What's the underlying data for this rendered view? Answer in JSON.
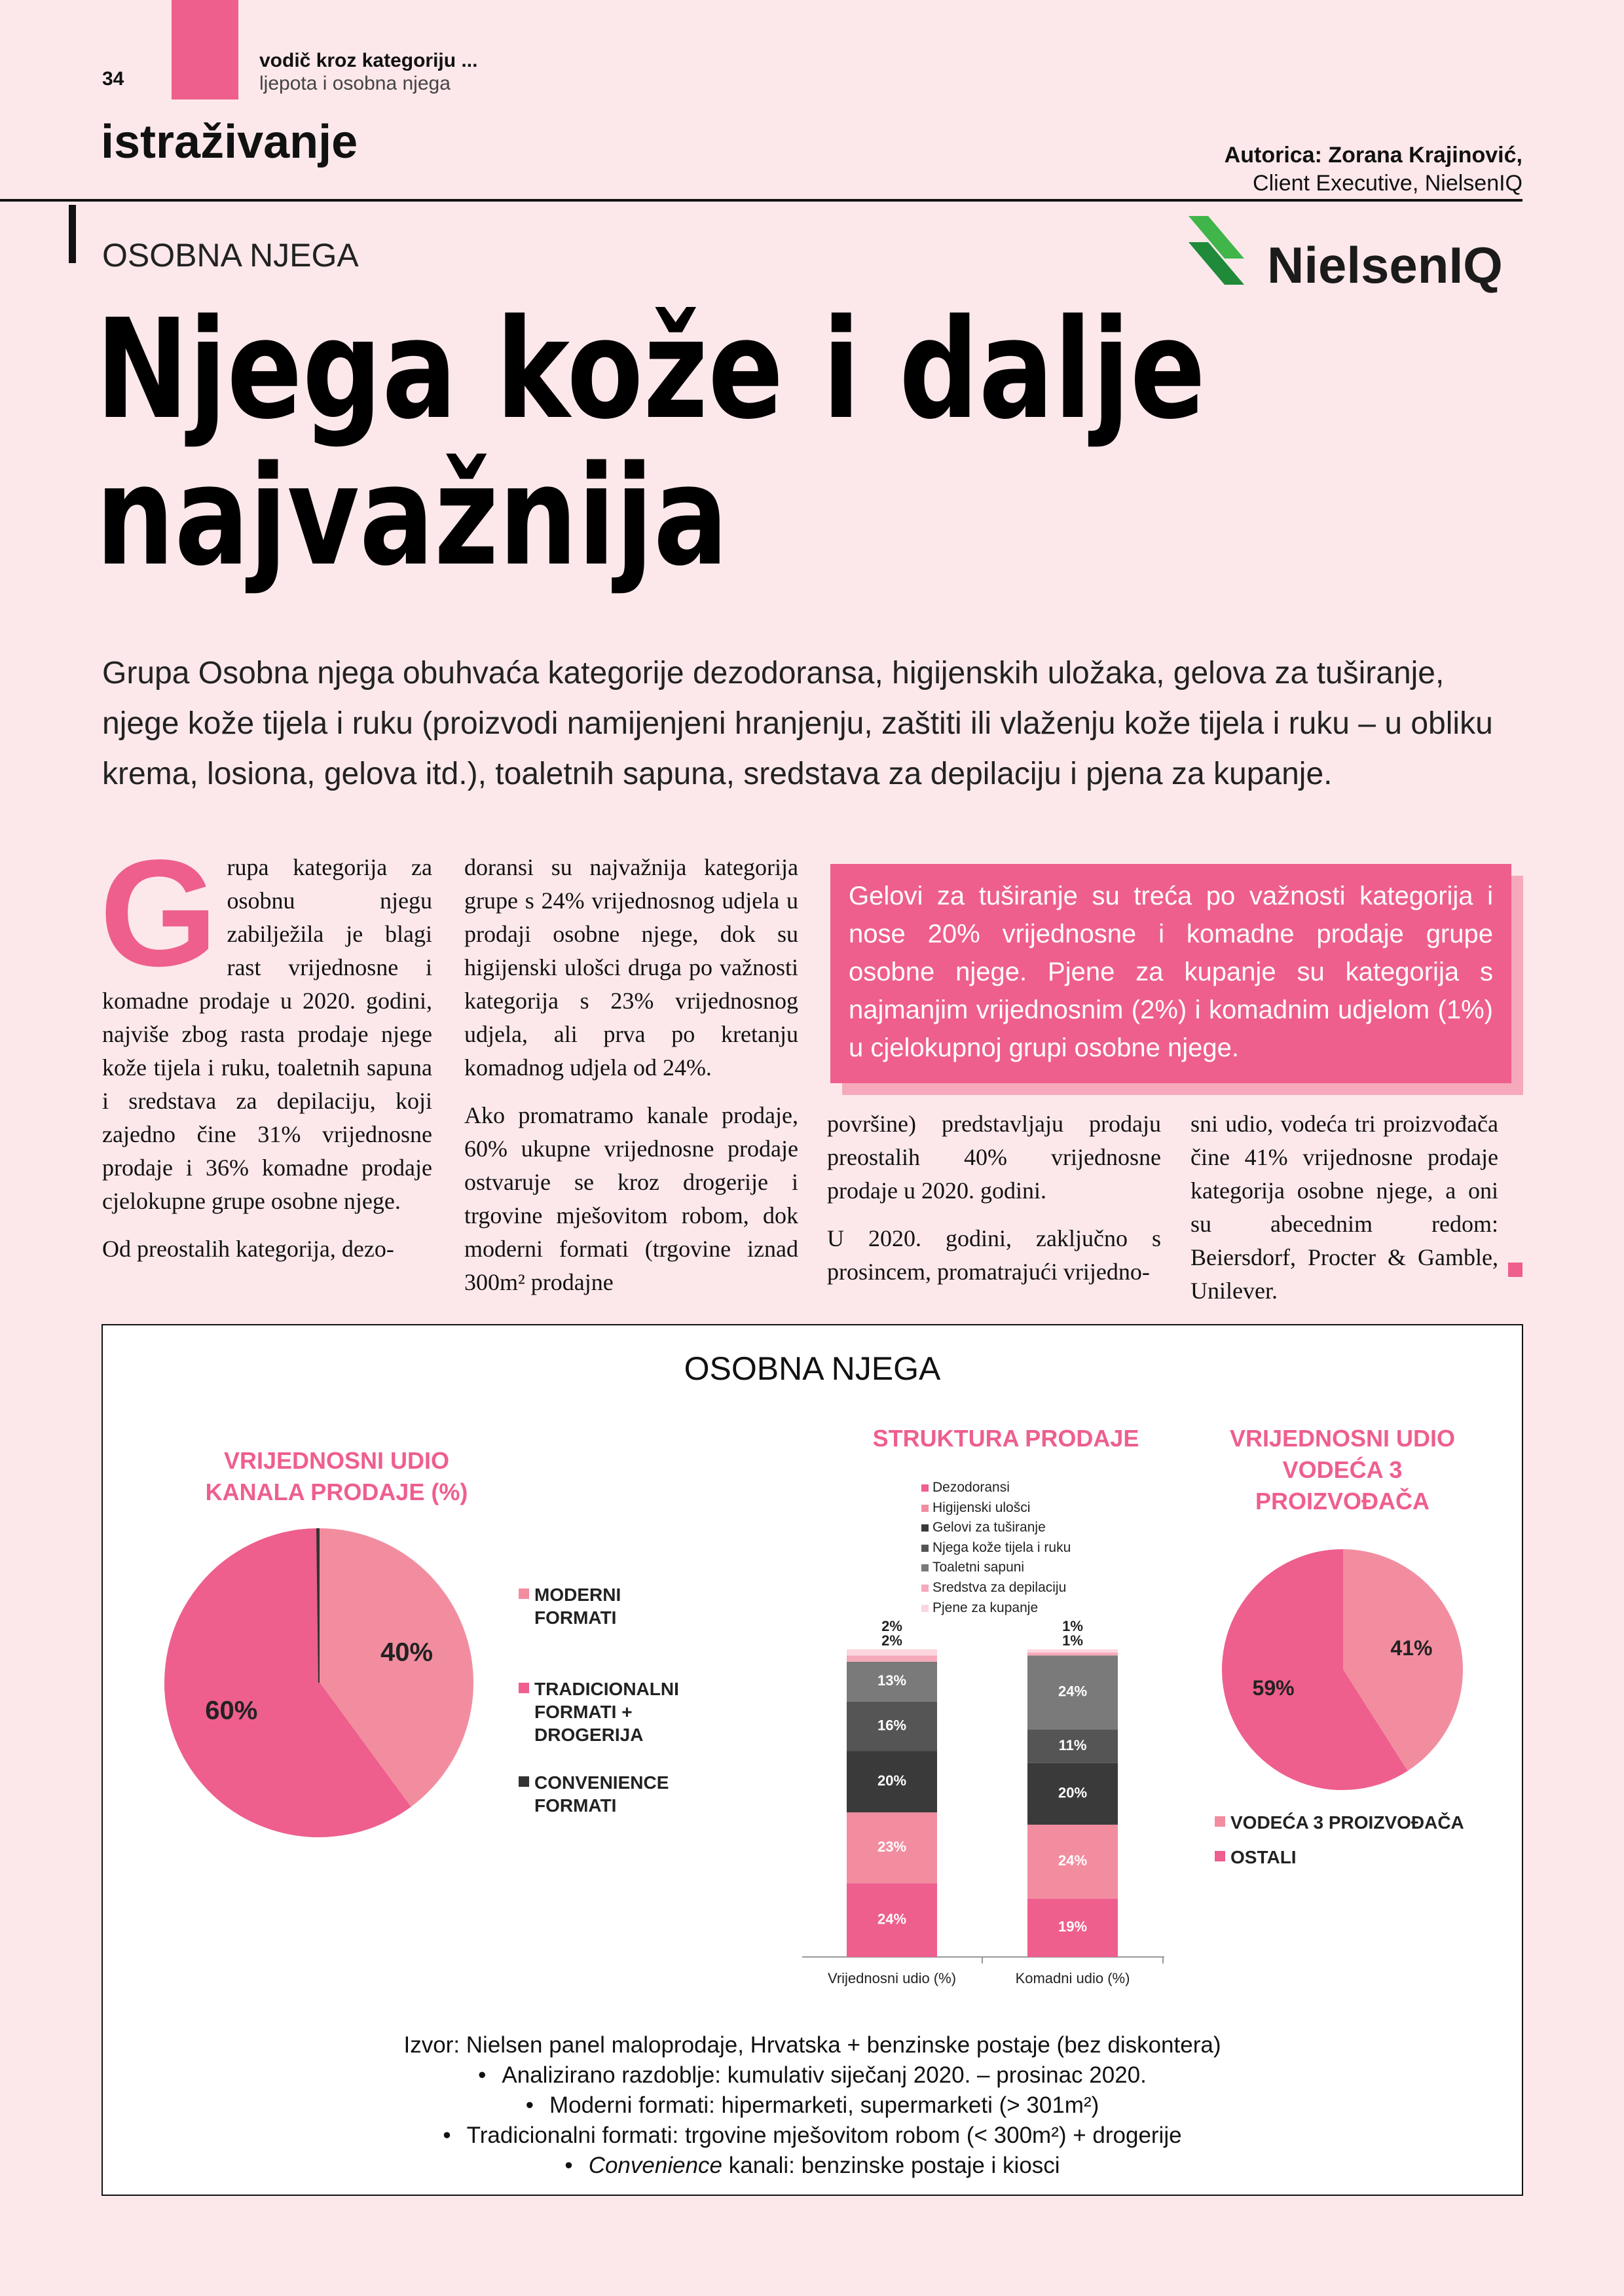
{
  "header": {
    "page_number": "34",
    "section": "vodič kroz kategoriju ...",
    "subsection": "ljepota i osobna njega",
    "rubric": "istraživanje",
    "author": "Autorica: Zorana Krajinović,",
    "author_role": "Client Executive, NielsenIQ",
    "logo": "NielsenIQ"
  },
  "kicker": "OSOBNA NJEGA",
  "title": [
    "Njega kože i dalje",
    "najvažnija"
  ],
  "lead": "Grupa Osobna njega obuhvaća kategorije dezodoransa, higijenskih uložaka, gelova za tuširanje, njege kože tijela i ruku (proizvodi namijenjeni hranjenju, zaštiti ili vlaženju kože tijela i ruku – u obliku krema, losiona, gelova itd.), toaletnih sapuna, sredstava za depilaciju i pjena za kupanje.",
  "body": {
    "drop_cap": "G",
    "columns": [
      [
        "rupa kategorija za osobnu njegu zabilježila je blagi rast vrijednosne i komadne prodaje u 2020. godini, najviše zbog rasta prodaje njege kože tijela i ruku, toaletnih sapuna i sredstava za depilaciju, koji zajedno čine 31% vrijednosne prodaje i 36% komadne prodaje cjelokupne grupe osobne njege.",
        "Od preostalih kategorija, dezo-"
      ],
      [
        "doransi su najvažnija kategorija grupe s 24% vrijednosnog udjela u prodaji osobne njege, dok su higijenski ulošci druga po važnosti kategorija s 23% vrijednosnog udjela, ali prva po kretanju komadnog udjela od 24%.",
        "Ako promatramo kanale prodaje, 60% ukupne vrijednosne prodaje ostvaruje se kroz drogerije i trgovine mješovitom robom, dok moderni formati (trgovine iznad 300m² prodajne"
      ],
      [
        "površine) predstavljaju prodaju preostalih 40% vrijednosne prodaje u 2020. godini.",
        "U 2020. godini, zaključno s prosincem, promatrajući vrijedno-"
      ],
      [
        "sni udio, vodeća tri proizvođača čine 41% vrijednosne prodaje kategorija osobne njege, a oni su abecednim redom: Beiersdorf, Procter & Gamble, Unilever."
      ]
    ]
  },
  "callout": "Gelovi za tuširanje su treća po važnosti kategorija i nose 20% vrijednosne i komadne prodaje grupe osobne njege. Pjene za kupanje su kategorija s najmanjim vrijednosnim (2%) i komadnim udjelom (1%) u cjelokupnoj grupi osobne njege.",
  "figure": {
    "title": "OSOBNA NJEGA",
    "charts": [
      {
        "type": "pie",
        "title": "VRIJEDNOSNI UDIO KANALA PRODAJE (%)",
        "categories": [
          "MODERNI FORMATI",
          "TRADICIONALNI FORMATI + DROGERIJA",
          "CONVENIENCE FORMATI"
        ],
        "values": [
          40,
          60,
          0.2
        ],
        "value_labels": [
          "40%",
          "60%",
          null
        ],
        "colors": [
          "#f28da0",
          "#ee5f8d",
          "#333333"
        ]
      },
      {
        "type": "bar",
        "stacked": true,
        "title": "STRUKTURA PRODAJE",
        "categories": [
          "Vrijednosni udio (%)",
          "Komadni udio (%)"
        ],
        "series": [
          {
            "name": "Dezodoransi",
            "color": "#ee5f8d",
            "values": [
              24,
              19
            ],
            "value_labels": [
              "24%",
              "19%"
            ]
          },
          {
            "name": "Higijenski ulošci",
            "color": "#f28da0",
            "values": [
              23,
              24
            ],
            "value_labels": [
              "23%",
              "24%"
            ]
          },
          {
            "name": "Gelovi za tuširanje",
            "color": "#3a3a3a",
            "values": [
              20,
              20
            ],
            "value_labels": [
              "20%",
              "20%"
            ]
          },
          {
            "name": "Njega kože tijela i ruku",
            "color": "#555555",
            "values": [
              16,
              11
            ],
            "value_labels": [
              "16%",
              "11%"
            ]
          },
          {
            "name": "Toaletni sapuni",
            "color": "#7a7a7a",
            "values": [
              13,
              24
            ],
            "value_labels": [
              "13%",
              "24%"
            ]
          },
          {
            "name": "Sredstva za depilaciju",
            "color": "#f6a9ba",
            "values": [
              2,
              1
            ],
            "value_labels": [
              "2%",
              "1%"
            ]
          },
          {
            "name": "Pjene za kupanje",
            "color": "#fbd6de",
            "values": [
              2,
              1
            ],
            "value_labels": [
              "2%",
              "1%"
            ]
          }
        ]
      },
      {
        "type": "pie",
        "title": "VRIJEDNOSNI UDIO VODEĆA 3 PROIZVOĐAČA",
        "categories": [
          "VODEĆA 3 PROIZVOĐAČA",
          "OSTALI"
        ],
        "values": [
          41,
          59
        ],
        "value_labels": [
          "41%",
          "59%"
        ],
        "colors": [
          "#f28da0",
          "#ee5f8d"
        ]
      }
    ],
    "source": {
      "title": "Izvor: Nielsen panel maloprodaje, Hrvatska + benzinske postaje (bez diskontera)",
      "bullets": [
        {
          "text": "Analizirano razdoblje: kumulativ siječanj 2020. – prosinac 2020."
        },
        {
          "text": "Moderni formati: hipermarketi, supermarketi (> 301m²)"
        },
        {
          "text": "Tradicionalni formati: trgovine mješovitom robom (< 300m²) + drogerije"
        },
        {
          "em": "Convenience",
          "text": "kanali: benzinske postaje i kiosci"
        }
      ]
    }
  }
}
